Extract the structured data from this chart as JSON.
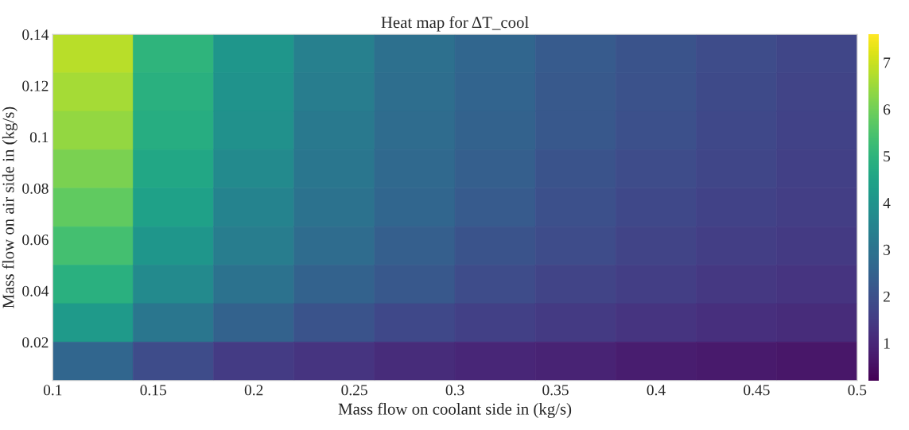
{
  "chart_data": {
    "type": "heatmap",
    "title": "Heat map for ΔT_cool",
    "xlabel": "Mass flow on coolant side in (kg/s)",
    "ylabel": "Mass flow on air side in (kg/s)",
    "x": [
      0.12,
      0.16,
      0.2,
      0.24,
      0.28,
      0.32,
      0.36,
      0.4,
      0.44,
      0.48
    ],
    "y": [
      0.1325,
      0.1175,
      0.1025,
      0.0875,
      0.0725,
      0.0575,
      0.0425,
      0.0275,
      0.0125
    ],
    "xlim": [
      0.1,
      0.5
    ],
    "ylim": [
      0.005,
      0.14
    ],
    "xticks": [
      0.1,
      0.15,
      0.2,
      0.25,
      0.3,
      0.35,
      0.4,
      0.45,
      0.5
    ],
    "yticks": [
      0.02,
      0.04,
      0.06,
      0.08,
      0.1,
      0.12,
      0.14
    ],
    "clim": [
      0.2,
      7.6
    ],
    "cticks": [
      1,
      2,
      3,
      4,
      5,
      6,
      7
    ],
    "cells": [
      [
        6.8,
        5.0,
        4.1,
        3.4,
        2.9,
        2.6,
        2.3,
        2.1,
        1.9,
        1.75
      ],
      [
        6.6,
        4.9,
        4.0,
        3.3,
        2.85,
        2.55,
        2.25,
        2.05,
        1.85,
        1.7
      ],
      [
        6.4,
        4.8,
        3.9,
        3.2,
        2.8,
        2.5,
        2.2,
        2.0,
        1.8,
        1.65
      ],
      [
        6.1,
        4.6,
        3.7,
        3.1,
        2.7,
        2.4,
        2.1,
        1.9,
        1.75,
        1.6
      ],
      [
        5.8,
        4.4,
        3.5,
        3.0,
        2.6,
        2.3,
        2.0,
        1.8,
        1.65,
        1.55
      ],
      [
        5.4,
        4.1,
        3.3,
        2.8,
        2.4,
        2.1,
        1.9,
        1.7,
        1.55,
        1.45
      ],
      [
        4.9,
        3.7,
        3.0,
        2.5,
        2.2,
        1.9,
        1.7,
        1.55,
        1.4,
        1.3
      ],
      [
        4.2,
        3.1,
        2.5,
        2.1,
        1.8,
        1.6,
        1.45,
        1.3,
        1.2,
        1.1
      ],
      [
        2.6,
        1.9,
        1.5,
        1.3,
        1.1,
        1.0,
        0.9,
        0.8,
        0.7,
        0.65
      ]
    ]
  }
}
